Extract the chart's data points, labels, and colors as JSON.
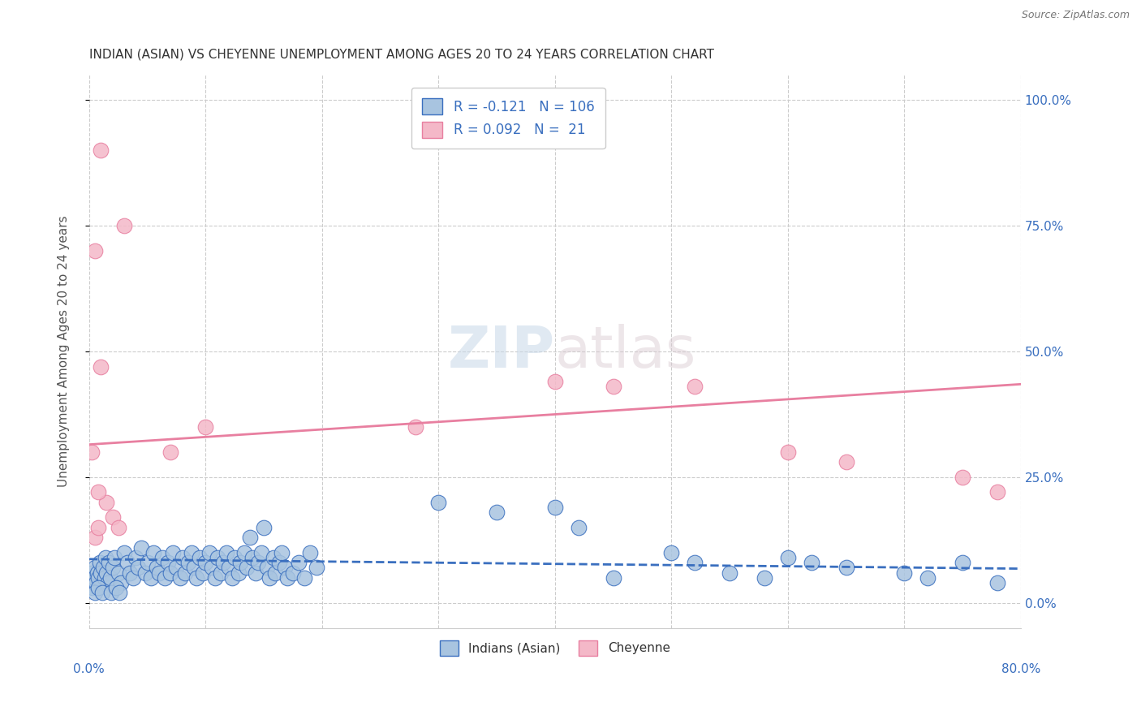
{
  "title": "INDIAN (ASIAN) VS CHEYENNE UNEMPLOYMENT AMONG AGES 20 TO 24 YEARS CORRELATION CHART",
  "source": "Source: ZipAtlas.com",
  "ylabel": "Unemployment Among Ages 20 to 24 years",
  "right_yticks": [
    0.0,
    0.25,
    0.5,
    0.75,
    1.0
  ],
  "right_yticklabels": [
    "0.0%",
    "25.0%",
    "50.0%",
    "75.0%",
    "100.0%"
  ],
  "watermark_zip": "ZIP",
  "watermark_atlas": "atlas",
  "legend_indian_r": "-0.121",
  "legend_indian_n": "106",
  "legend_cheyenne_r": "0.092",
  "legend_cheyenne_n": "21",
  "color_indian": "#a8c4e0",
  "color_cheyenne": "#f4b8c8",
  "color_line_indian": "#3a6fbf",
  "color_line_cheyenne": "#e87fa0",
  "color_text_blue": "#3a6fbf",
  "color_title": "#333333",
  "color_source": "#777777",
  "xmin": 0.0,
  "xmax": 0.8,
  "ymin": -0.05,
  "ymax": 1.05,
  "indian_x": [
    0.0,
    0.001,
    0.002,
    0.003,
    0.004,
    0.005,
    0.006,
    0.007,
    0.008,
    0.009,
    0.01,
    0.012,
    0.013,
    0.014,
    0.015,
    0.016,
    0.017,
    0.018,
    0.02,
    0.022,
    0.025,
    0.027,
    0.03,
    0.033,
    0.035,
    0.038,
    0.04,
    0.042,
    0.045,
    0.048,
    0.05,
    0.053,
    0.055,
    0.058,
    0.06,
    0.063,
    0.065,
    0.068,
    0.07,
    0.072,
    0.075,
    0.078,
    0.08,
    0.082,
    0.085,
    0.088,
    0.09,
    0.092,
    0.095,
    0.098,
    0.1,
    0.103,
    0.105,
    0.108,
    0.11,
    0.113,
    0.115,
    0.118,
    0.12,
    0.123,
    0.125,
    0.128,
    0.13,
    0.133,
    0.135,
    0.138,
    0.14,
    0.143,
    0.145,
    0.148,
    0.15,
    0.153,
    0.155,
    0.158,
    0.16,
    0.163,
    0.165,
    0.168,
    0.17,
    0.175,
    0.18,
    0.185,
    0.19,
    0.195,
    0.3,
    0.35,
    0.4,
    0.42,
    0.45,
    0.5,
    0.52,
    0.55,
    0.58,
    0.6,
    0.62,
    0.65,
    0.7,
    0.72,
    0.75,
    0.78,
    0.005,
    0.008,
    0.011,
    0.019,
    0.023,
    0.026
  ],
  "indian_y": [
    0.05,
    0.04,
    0.06,
    0.03,
    0.05,
    0.07,
    0.04,
    0.06,
    0.05,
    0.08,
    0.06,
    0.07,
    0.05,
    0.09,
    0.06,
    0.04,
    0.08,
    0.05,
    0.07,
    0.09,
    0.06,
    0.04,
    0.1,
    0.08,
    0.06,
    0.05,
    0.09,
    0.07,
    0.11,
    0.06,
    0.08,
    0.05,
    0.1,
    0.07,
    0.06,
    0.09,
    0.05,
    0.08,
    0.06,
    0.1,
    0.07,
    0.05,
    0.09,
    0.06,
    0.08,
    0.1,
    0.07,
    0.05,
    0.09,
    0.06,
    0.08,
    0.1,
    0.07,
    0.05,
    0.09,
    0.06,
    0.08,
    0.1,
    0.07,
    0.05,
    0.09,
    0.06,
    0.08,
    0.1,
    0.07,
    0.13,
    0.09,
    0.06,
    0.08,
    0.1,
    0.15,
    0.07,
    0.05,
    0.09,
    0.06,
    0.08,
    0.1,
    0.07,
    0.05,
    0.06,
    0.08,
    0.05,
    0.1,
    0.07,
    0.2,
    0.18,
    0.19,
    0.15,
    0.05,
    0.1,
    0.08,
    0.06,
    0.05,
    0.09,
    0.08,
    0.07,
    0.06,
    0.05,
    0.08,
    0.04,
    0.02,
    0.03,
    0.02,
    0.02,
    0.03,
    0.02
  ],
  "cheyenne_x": [
    0.002,
    0.005,
    0.008,
    0.01,
    0.015,
    0.02,
    0.025,
    0.03,
    0.005,
    0.01,
    0.07,
    0.1,
    0.28,
    0.45,
    0.4,
    0.6,
    0.65,
    0.008,
    0.75,
    0.78,
    0.52
  ],
  "cheyenne_y": [
    0.3,
    0.13,
    0.15,
    0.47,
    0.2,
    0.17,
    0.15,
    0.75,
    0.7,
    0.9,
    0.3,
    0.35,
    0.35,
    0.43,
    0.44,
    0.3,
    0.28,
    0.22,
    0.25,
    0.22,
    0.43
  ],
  "indian_trend_x": [
    0.0,
    0.8
  ],
  "indian_trend_y": [
    0.087,
    0.068
  ],
  "cheyenne_trend_x": [
    0.0,
    0.8
  ],
  "cheyenne_trend_y": [
    0.315,
    0.435
  ]
}
